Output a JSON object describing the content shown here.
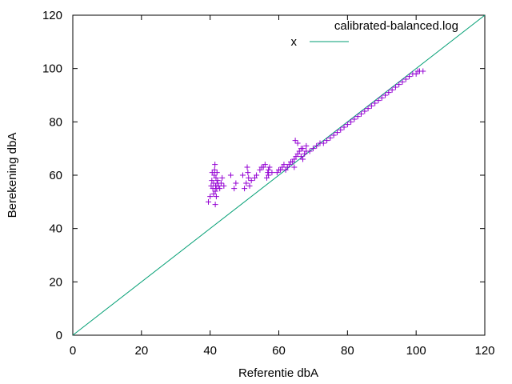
{
  "chart_data": {
    "type": "scatter",
    "xlabel": "Referentie dbA",
    "ylabel": "Berekening dbA",
    "xlim": [
      0,
      120
    ],
    "ylim": [
      0,
      120
    ],
    "xticks": [
      "0",
      "20",
      "40",
      "60",
      "80",
      "100",
      "120"
    ],
    "yticks": [
      "0",
      "20",
      "40",
      "60",
      "80",
      "100",
      "120"
    ],
    "grid": false,
    "legend_position": "top-right",
    "series": [
      {
        "name": "calibrated-balanced.log",
        "kind": "points",
        "marker": "plus",
        "color": "#9400d3",
        "points": [
          [
            39.5,
            50
          ],
          [
            40,
            52
          ],
          [
            40.3,
            56
          ],
          [
            40.5,
            58
          ],
          [
            40.6,
            61
          ],
          [
            40.8,
            55
          ],
          [
            41,
            53
          ],
          [
            41,
            57
          ],
          [
            41.2,
            60
          ],
          [
            41.3,
            62
          ],
          [
            41.4,
            64
          ],
          [
            41.5,
            49
          ],
          [
            41.5,
            54
          ],
          [
            41.6,
            56
          ],
          [
            41.7,
            59
          ],
          [
            41.8,
            52
          ],
          [
            41.9,
            55
          ],
          [
            42,
            57
          ],
          [
            42,
            61
          ],
          [
            42.2,
            58
          ],
          [
            42.5,
            56
          ],
          [
            42.8,
            55
          ],
          [
            43.2,
            57
          ],
          [
            43.5,
            59
          ],
          [
            44,
            56
          ],
          [
            46,
            60
          ],
          [
            47,
            55
          ],
          [
            47.5,
            57
          ],
          [
            49.5,
            60
          ],
          [
            50,
            55
          ],
          [
            50.5,
            57
          ],
          [
            50.8,
            63
          ],
          [
            51,
            61
          ],
          [
            51.2,
            59
          ],
          [
            51.5,
            56
          ],
          [
            52,
            58
          ],
          [
            53,
            59
          ],
          [
            53.5,
            60
          ],
          [
            54.5,
            62
          ],
          [
            55,
            63
          ],
          [
            55.5,
            63
          ],
          [
            56,
            64
          ],
          [
            56.5,
            59
          ],
          [
            56.8,
            61
          ],
          [
            57,
            60
          ],
          [
            57,
            62
          ],
          [
            57.3,
            63
          ],
          [
            58,
            61
          ],
          [
            59.5,
            61
          ],
          [
            60,
            62
          ],
          [
            60.5,
            62
          ],
          [
            61,
            63
          ],
          [
            61.5,
            64
          ],
          [
            62,
            62
          ],
          [
            62.5,
            63
          ],
          [
            63,
            64
          ],
          [
            63.5,
            65
          ],
          [
            64,
            65
          ],
          [
            64.5,
            66
          ],
          [
            64.5,
            63
          ],
          [
            64.8,
            73
          ],
          [
            65,
            67
          ],
          [
            65.5,
            68
          ],
          [
            65.5,
            72
          ],
          [
            66,
            69
          ],
          [
            66.5,
            67
          ],
          [
            66.5,
            70
          ],
          [
            67,
            70
          ],
          [
            67,
            66
          ],
          [
            67.5,
            68
          ],
          [
            68,
            69
          ],
          [
            68,
            71
          ],
          [
            69,
            69
          ],
          [
            70,
            70
          ],
          [
            71,
            71
          ],
          [
            72,
            72
          ],
          [
            73,
            72
          ],
          [
            74,
            73
          ],
          [
            75,
            74
          ],
          [
            76,
            75
          ],
          [
            77,
            76
          ],
          [
            78,
            77
          ],
          [
            79,
            78
          ],
          [
            80,
            79
          ],
          [
            81,
            80
          ],
          [
            82,
            81
          ],
          [
            83,
            82
          ],
          [
            84,
            83
          ],
          [
            85,
            84
          ],
          [
            86,
            85
          ],
          [
            87,
            86
          ],
          [
            88,
            87
          ],
          [
            89,
            88
          ],
          [
            90,
            89
          ],
          [
            91,
            90
          ],
          [
            92,
            91
          ],
          [
            93,
            92
          ],
          [
            94,
            93
          ],
          [
            95,
            94
          ],
          [
            96,
            95
          ],
          [
            97,
            96
          ],
          [
            98,
            97
          ],
          [
            99,
            98
          ],
          [
            100,
            98
          ],
          [
            100.5,
            99
          ],
          [
            101,
            99
          ],
          [
            102,
            99
          ]
        ]
      },
      {
        "name": "x",
        "kind": "line",
        "color": "#009e73",
        "points": [
          [
            0,
            0
          ],
          [
            120,
            120
          ]
        ]
      }
    ]
  }
}
